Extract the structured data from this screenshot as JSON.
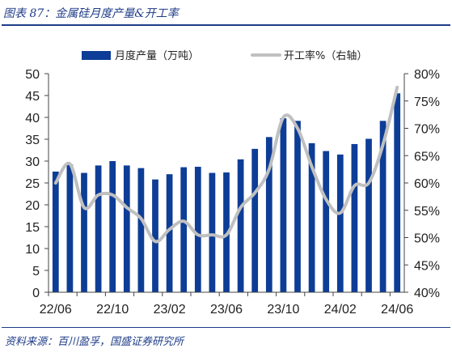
{
  "caption": "图表 87：金属硅月度产量&开工率",
  "source": "资料来源：百川盈孚，国盛证券研究所",
  "chart_data": {
    "type": "bar",
    "series": [
      {
        "name": "月度产量（万吨）",
        "type": "bar",
        "axis": "left",
        "color": "#0d3d96",
        "values": [
          27.6,
          29.2,
          27.3,
          29.0,
          30.0,
          29.0,
          28.4,
          25.8,
          27.0,
          28.6,
          28.7,
          27.3,
          27.4,
          30.4,
          32.8,
          35.5,
          39.8,
          39.2,
          34.1,
          32.3,
          31.5,
          33.9,
          35.1,
          39.2,
          45.5
        ]
      },
      {
        "name": "开工率%（右轴）",
        "type": "line",
        "axis": "right",
        "color": "#c0c0c0",
        "values": [
          60.0,
          63.5,
          55.5,
          57.8,
          57.8,
          55.5,
          53.5,
          49.3,
          51.5,
          53.0,
          50.5,
          50.5,
          50.5,
          55.5,
          58.2,
          62.5,
          72.0,
          70.0,
          63.0,
          57.0,
          54.5,
          59.5,
          60.0,
          67.0,
          77.5
        ]
      }
    ],
    "x_tick_labels": [
      "22/06",
      "22/10",
      "23/02",
      "23/06",
      "23/10",
      "24/02",
      "24/06"
    ],
    "x_tick_indices": [
      0,
      4,
      8,
      12,
      16,
      20,
      24
    ],
    "y_left": {
      "min": 0,
      "max": 50,
      "ticks": [
        "0",
        "5",
        "10",
        "15",
        "20",
        "25",
        "30",
        "35",
        "40",
        "45",
        "50"
      ]
    },
    "y_right": {
      "min": 40,
      "max": 80,
      "ticks": [
        "40%",
        "45%",
        "50%",
        "55%",
        "60%",
        "65%",
        "70%",
        "75%",
        "80%"
      ]
    },
    "legend_position": "top-center",
    "grid": false
  }
}
